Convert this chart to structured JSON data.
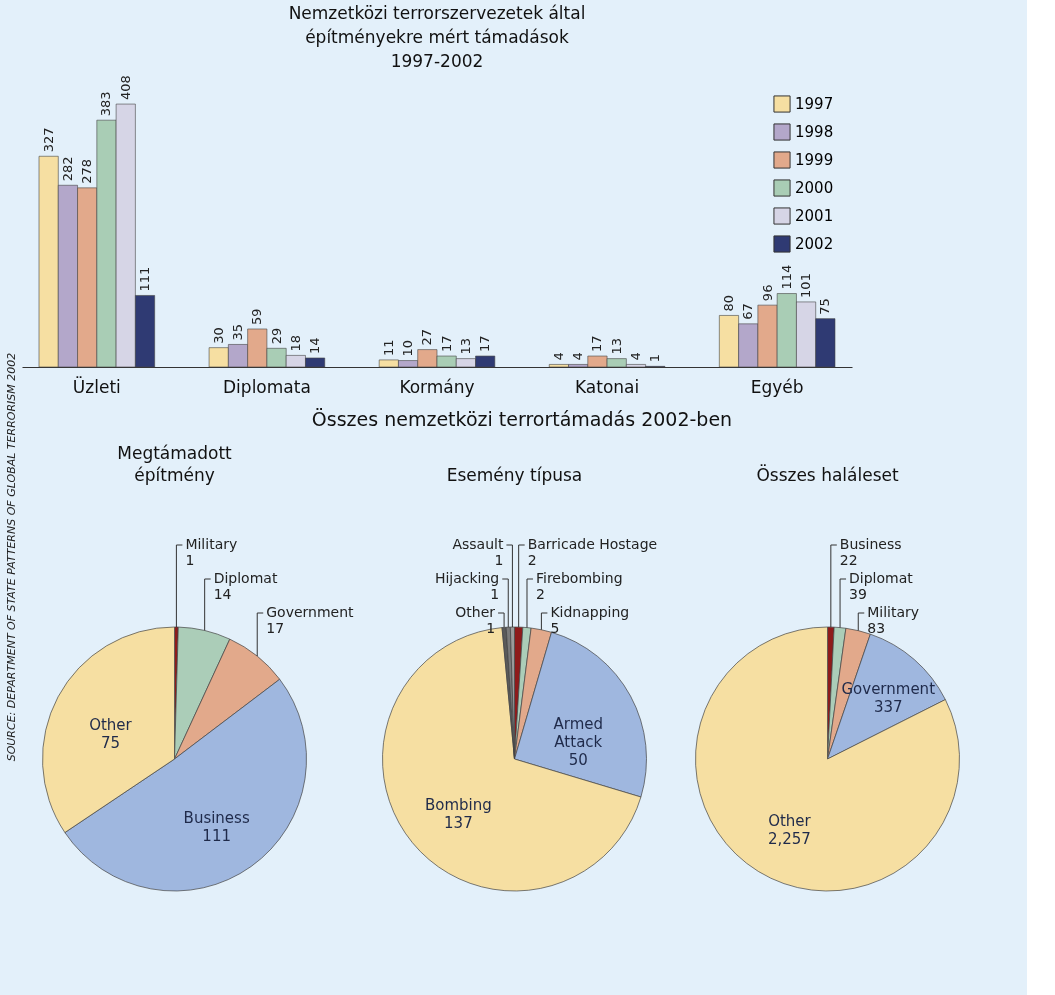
{
  "chart_data": [
    {
      "type": "bar",
      "title": "Nemzetközi terrorszervezetek által\népítményekre mért támadások\n1997-2002",
      "categories": [
        "Üzleti",
        "Diplomata",
        "Kormány",
        "Katonai",
        "Egyéb"
      ],
      "legend": "top right",
      "data_labels": true,
      "annotations": [
        "SOURCE: DEPARTMENT OF STATE PATTERNS OF GLOBAL TERRORISM 2002"
      ],
      "series": [
        {
          "name": "1997",
          "color": "#f6dfa2",
          "values": [
            327,
            30,
            11,
            4,
            80
          ]
        },
        {
          "name": "1998",
          "color": "#b3a7ca",
          "values": [
            282,
            35,
            10,
            4,
            67
          ]
        },
        {
          "name": "1999",
          "color": "#e2a98b",
          "values": [
            278,
            59,
            27,
            17,
            96
          ]
        },
        {
          "name": "2000",
          "color": "#a9cdb5",
          "values": [
            383,
            29,
            17,
            13,
            114
          ]
        },
        {
          "name": "2001",
          "color": "#d6d5e6",
          "values": [
            408,
            18,
            13,
            4,
            101
          ]
        },
        {
          "name": "2002",
          "color": "#2f3a73",
          "values": [
            111,
            14,
            17,
            1,
            75
          ]
        }
      ]
    },
    {
      "type": "other",
      "title": "Összes nemzetközi terrortámadás 2002-ben"
    },
    {
      "type": "pie",
      "title": "Megtámadott\népítmény",
      "categories": [
        "Military",
        "Diplomat",
        "Government",
        "Business",
        "Other"
      ],
      "values": [
        1,
        14,
        17,
        111,
        75
      ],
      "value_labels": [
        "1",
        "14",
        "17",
        "111",
        "75"
      ],
      "colors": [
        "#8e1b1b",
        "#abcdb8",
        "#e2a98b",
        "#9fb7df",
        "#f6dfa2"
      ]
    },
    {
      "type": "pie",
      "title": "Esemény típusa",
      "categories": [
        "Barricade Hostage",
        "Firebombing",
        "Kidnapping",
        "Armed Attack",
        "Bombing",
        "Other",
        "Hijacking",
        "Assault"
      ],
      "values": [
        2,
        2,
        5,
        50,
        137,
        1,
        1,
        1
      ],
      "value_labels": [
        "2",
        "2",
        "5",
        "50",
        "137",
        "1",
        "1",
        "1"
      ],
      "colors": [
        "#8e1b1b",
        "#abcdb8",
        "#e2a98b",
        "#9fb7df",
        "#f6dfa2",
        "#5a5a5a",
        "#7a7a7a",
        "#9a9a9a"
      ]
    },
    {
      "type": "pie",
      "title": "Összes haláleset",
      "categories": [
        "Business",
        "Diplomat",
        "Military",
        "Government",
        "Other"
      ],
      "values": [
        22,
        39,
        83,
        337,
        2257
      ],
      "value_labels": [
        "22",
        "39",
        "83",
        "337",
        "2,257"
      ],
      "colors": [
        "#8e1b1b",
        "#abcdb8",
        "#e2a98b",
        "#9fb7df",
        "#f6dfa2"
      ]
    }
  ]
}
